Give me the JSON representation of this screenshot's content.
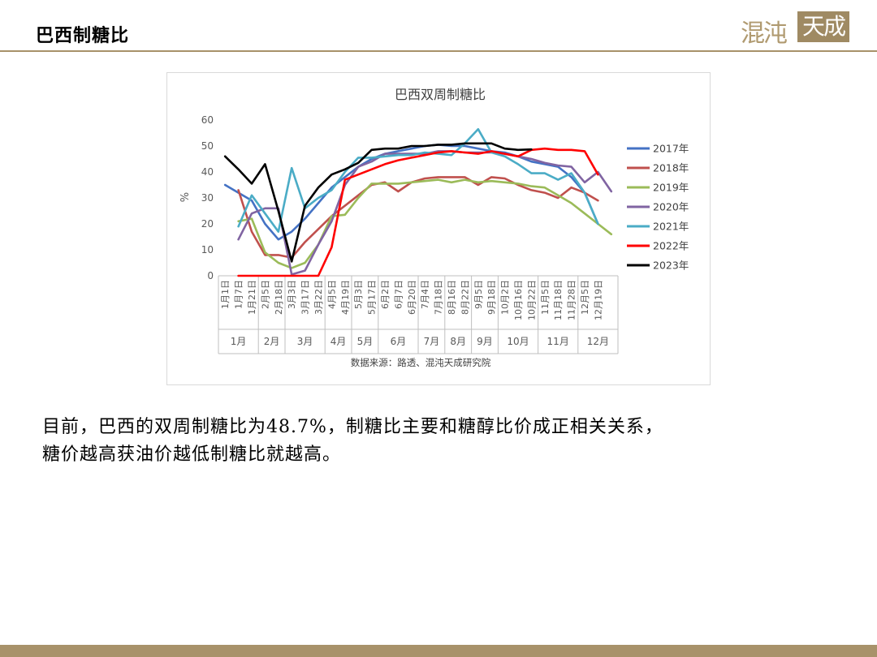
{
  "slide": {
    "title": "巴西制糖比",
    "logo_left": "混沌",
    "logo_right": "天成",
    "body_line1": "目前，巴西的双周制糖比为48.7%，制糖比主要和糖醇比价成正相关关系，",
    "body_line2": "糖价越高获油价越低制糖比就越高。"
  },
  "chart_data": {
    "type": "line",
    "title": "巴西双周制糖比",
    "ylabel": "%",
    "ylim": [
      0,
      60
    ],
    "yticks": [
      0,
      10,
      20,
      30,
      40,
      50,
      60
    ],
    "grid": false,
    "legend_position": "right",
    "source": "数据来源：路透、混沌天成研究院",
    "x_labels": [
      "1月1日",
      "1月7日",
      "1月21日",
      "2月5日",
      "2月18日",
      "3月3日",
      "3月17日",
      "3月22日",
      "4月5日",
      "4月19日",
      "5月3日",
      "5月17日",
      "6月2日",
      "6月7日",
      "6月20日",
      "7月4日",
      "7月18日",
      "8月16日",
      "8月22日",
      "9月5日",
      "9月18日",
      "10月2日",
      "10月16日",
      "10月22日",
      "11月5日",
      "11月18日",
      "11月28日",
      "12月5日",
      "12月19日"
    ],
    "x_label_positions": [
      0,
      1,
      2,
      3,
      4,
      5,
      6,
      7,
      8,
      9,
      10,
      11,
      12,
      13,
      14,
      15,
      16,
      17,
      18,
      19,
      20,
      21,
      22,
      23,
      24,
      25,
      26,
      27,
      28
    ],
    "months": [
      {
        "label": "1月",
        "from": 0,
        "to": 3
      },
      {
        "label": "2月",
        "from": 3,
        "to": 5
      },
      {
        "label": "3月",
        "from": 5,
        "to": 8
      },
      {
        "label": "4月",
        "from": 8,
        "to": 10
      },
      {
        "label": "5月",
        "from": 10,
        "to": 12
      },
      {
        "label": "6月",
        "from": 12,
        "to": 15
      },
      {
        "label": "7月",
        "from": 15,
        "to": 17
      },
      {
        "label": "8月",
        "from": 17,
        "to": 19
      },
      {
        "label": "9月",
        "from": 19,
        "to": 21
      },
      {
        "label": "10月",
        "from": 21,
        "to": 24
      },
      {
        "label": "11月",
        "from": 24,
        "to": 27
      },
      {
        "label": "12月",
        "from": 27,
        "to": 30
      }
    ],
    "xlim": [
      0,
      30
    ],
    "series": [
      {
        "name": "2017年",
        "color": "#4472c4",
        "points": [
          [
            0,
            35
          ],
          [
            1,
            32
          ],
          [
            2,
            29
          ],
          [
            3,
            20
          ],
          [
            4,
            14
          ],
          [
            5,
            17
          ],
          [
            6,
            22
          ],
          [
            7,
            28
          ],
          [
            8,
            34
          ],
          [
            9,
            38
          ],
          [
            10,
            42
          ],
          [
            11,
            45
          ],
          [
            12,
            47
          ],
          [
            13,
            48
          ],
          [
            14,
            49
          ],
          [
            15,
            50
          ],
          [
            16,
            50.5
          ],
          [
            17,
            50
          ],
          [
            18,
            50
          ],
          [
            19,
            49
          ],
          [
            20,
            48
          ],
          [
            21,
            47.5
          ],
          [
            22,
            46
          ],
          [
            23,
            44
          ],
          [
            24,
            43
          ],
          [
            25,
            42
          ],
          [
            26,
            38
          ],
          [
            27,
            32
          ],
          [
            28,
            20
          ]
        ]
      },
      {
        "name": "2018年",
        "color": "#c0504d",
        "points": [
          [
            1,
            33
          ],
          [
            2,
            17
          ],
          [
            3,
            8
          ],
          [
            4,
            8
          ],
          [
            5,
            7
          ],
          [
            6,
            13
          ],
          [
            7,
            18
          ],
          [
            8,
            23
          ],
          [
            9,
            27
          ],
          [
            10,
            31
          ],
          [
            11,
            35
          ],
          [
            12,
            36
          ],
          [
            13,
            32.5
          ],
          [
            14,
            36
          ],
          [
            15,
            37.5
          ],
          [
            16,
            38
          ],
          [
            17,
            38
          ],
          [
            18,
            38
          ],
          [
            19,
            35
          ],
          [
            20,
            38
          ],
          [
            21,
            37.5
          ],
          [
            22,
            35
          ],
          [
            23,
            33
          ],
          [
            24,
            32
          ],
          [
            25,
            30
          ],
          [
            26,
            34
          ],
          [
            27,
            32
          ],
          [
            28,
            29
          ]
        ]
      },
      {
        "name": "2019年",
        "color": "#9bbb59",
        "points": [
          [
            1,
            21
          ],
          [
            2,
            22
          ],
          [
            3,
            9
          ],
          [
            4,
            5
          ],
          [
            5,
            3
          ],
          [
            6,
            5
          ],
          [
            7,
            12
          ],
          [
            8,
            23
          ],
          [
            9,
            23.5
          ],
          [
            10,
            30
          ],
          [
            11,
            35.5
          ],
          [
            12,
            35.5
          ],
          [
            13,
            35.5
          ],
          [
            14,
            36
          ],
          [
            15,
            36.5
          ],
          [
            16,
            37
          ],
          [
            17,
            36
          ],
          [
            18,
            37
          ],
          [
            19,
            36
          ],
          [
            20,
            36.5
          ],
          [
            21,
            36
          ],
          [
            22,
            35.5
          ],
          [
            23,
            34.5
          ],
          [
            24,
            34
          ],
          [
            25,
            31
          ],
          [
            26,
            28
          ],
          [
            27,
            24
          ],
          [
            28,
            20
          ],
          [
            29,
            16
          ]
        ]
      },
      {
        "name": "2020年",
        "color": "#8064a2",
        "points": [
          [
            1,
            14
          ],
          [
            2,
            24
          ],
          [
            3,
            26
          ],
          [
            4,
            26
          ],
          [
            5,
            0.5
          ],
          [
            6,
            2
          ],
          [
            7,
            12
          ],
          [
            8,
            21
          ],
          [
            9,
            35
          ],
          [
            10,
            42
          ],
          [
            11,
            44
          ],
          [
            12,
            47
          ],
          [
            13,
            47
          ],
          [
            14,
            47
          ],
          [
            15,
            47
          ],
          [
            16,
            48
          ],
          [
            17,
            48
          ],
          [
            18,
            47.5
          ],
          [
            19,
            47.5
          ],
          [
            20,
            47.5
          ],
          [
            21,
            47
          ],
          [
            22,
            46
          ],
          [
            23,
            45
          ],
          [
            24,
            43.5
          ],
          [
            25,
            42.5
          ],
          [
            26,
            42
          ],
          [
            27,
            36
          ],
          [
            28,
            40
          ],
          [
            29,
            32.5
          ]
        ]
      },
      {
        "name": "2021年",
        "color": "#4bacc6",
        "points": [
          [
            1,
            19
          ],
          [
            2,
            31
          ],
          [
            3,
            24
          ],
          [
            4,
            17
          ],
          [
            5,
            41.5
          ],
          [
            6,
            26
          ],
          [
            7,
            30
          ],
          [
            8,
            33
          ],
          [
            9,
            40
          ],
          [
            10,
            45.5
          ],
          [
            11,
            45.5
          ],
          [
            12,
            46
          ],
          [
            13,
            46.5
          ],
          [
            14,
            46.5
          ],
          [
            15,
            47.5
          ],
          [
            16,
            47
          ],
          [
            17,
            46.5
          ],
          [
            18,
            51
          ],
          [
            19,
            56.5
          ],
          [
            20,
            47.5
          ],
          [
            21,
            46
          ],
          [
            22,
            43
          ],
          [
            23,
            39.5
          ],
          [
            24,
            39.5
          ],
          [
            25,
            37
          ],
          [
            26,
            39.5
          ],
          [
            27,
            32
          ],
          [
            28,
            20
          ]
        ]
      },
      {
        "name": "2022年",
        "color": "#ff0000",
        "points": [
          [
            1,
            0
          ],
          [
            2,
            0
          ],
          [
            3,
            0
          ],
          [
            4,
            0
          ],
          [
            5,
            0
          ],
          [
            6,
            0
          ],
          [
            7,
            0
          ],
          [
            8,
            11
          ],
          [
            9,
            37
          ],
          [
            10,
            39
          ],
          [
            11,
            41
          ],
          [
            12,
            43
          ],
          [
            13,
            44.5
          ],
          [
            14,
            45.5
          ],
          [
            15,
            46.5
          ],
          [
            16,
            47.5
          ],
          [
            17,
            48
          ],
          [
            18,
            47.5
          ],
          [
            19,
            47
          ],
          [
            20,
            48
          ],
          [
            21,
            47
          ],
          [
            22,
            46
          ],
          [
            23,
            48.5
          ],
          [
            24,
            49
          ],
          [
            25,
            48.5
          ],
          [
            26,
            48.5
          ],
          [
            27,
            48
          ],
          [
            28,
            39
          ]
        ]
      },
      {
        "name": "2023年",
        "color": "#000000",
        "points": [
          [
            0,
            46
          ],
          [
            1,
            41
          ],
          [
            2,
            35.5
          ],
          [
            3,
            43
          ],
          [
            4,
            25
          ],
          [
            5,
            5.5
          ],
          [
            6,
            27
          ],
          [
            7,
            34
          ],
          [
            8,
            39
          ],
          [
            9,
            41
          ],
          [
            10,
            43.5
          ],
          [
            11,
            48.5
          ],
          [
            12,
            49
          ],
          [
            13,
            49
          ],
          [
            14,
            50
          ],
          [
            15,
            50
          ],
          [
            16,
            50.5
          ],
          [
            17,
            50.5
          ],
          [
            18,
            51
          ],
          [
            19,
            51
          ],
          [
            20,
            51
          ],
          [
            21,
            49
          ],
          [
            22,
            48.5
          ],
          [
            23,
            48.7
          ]
        ]
      }
    ]
  }
}
